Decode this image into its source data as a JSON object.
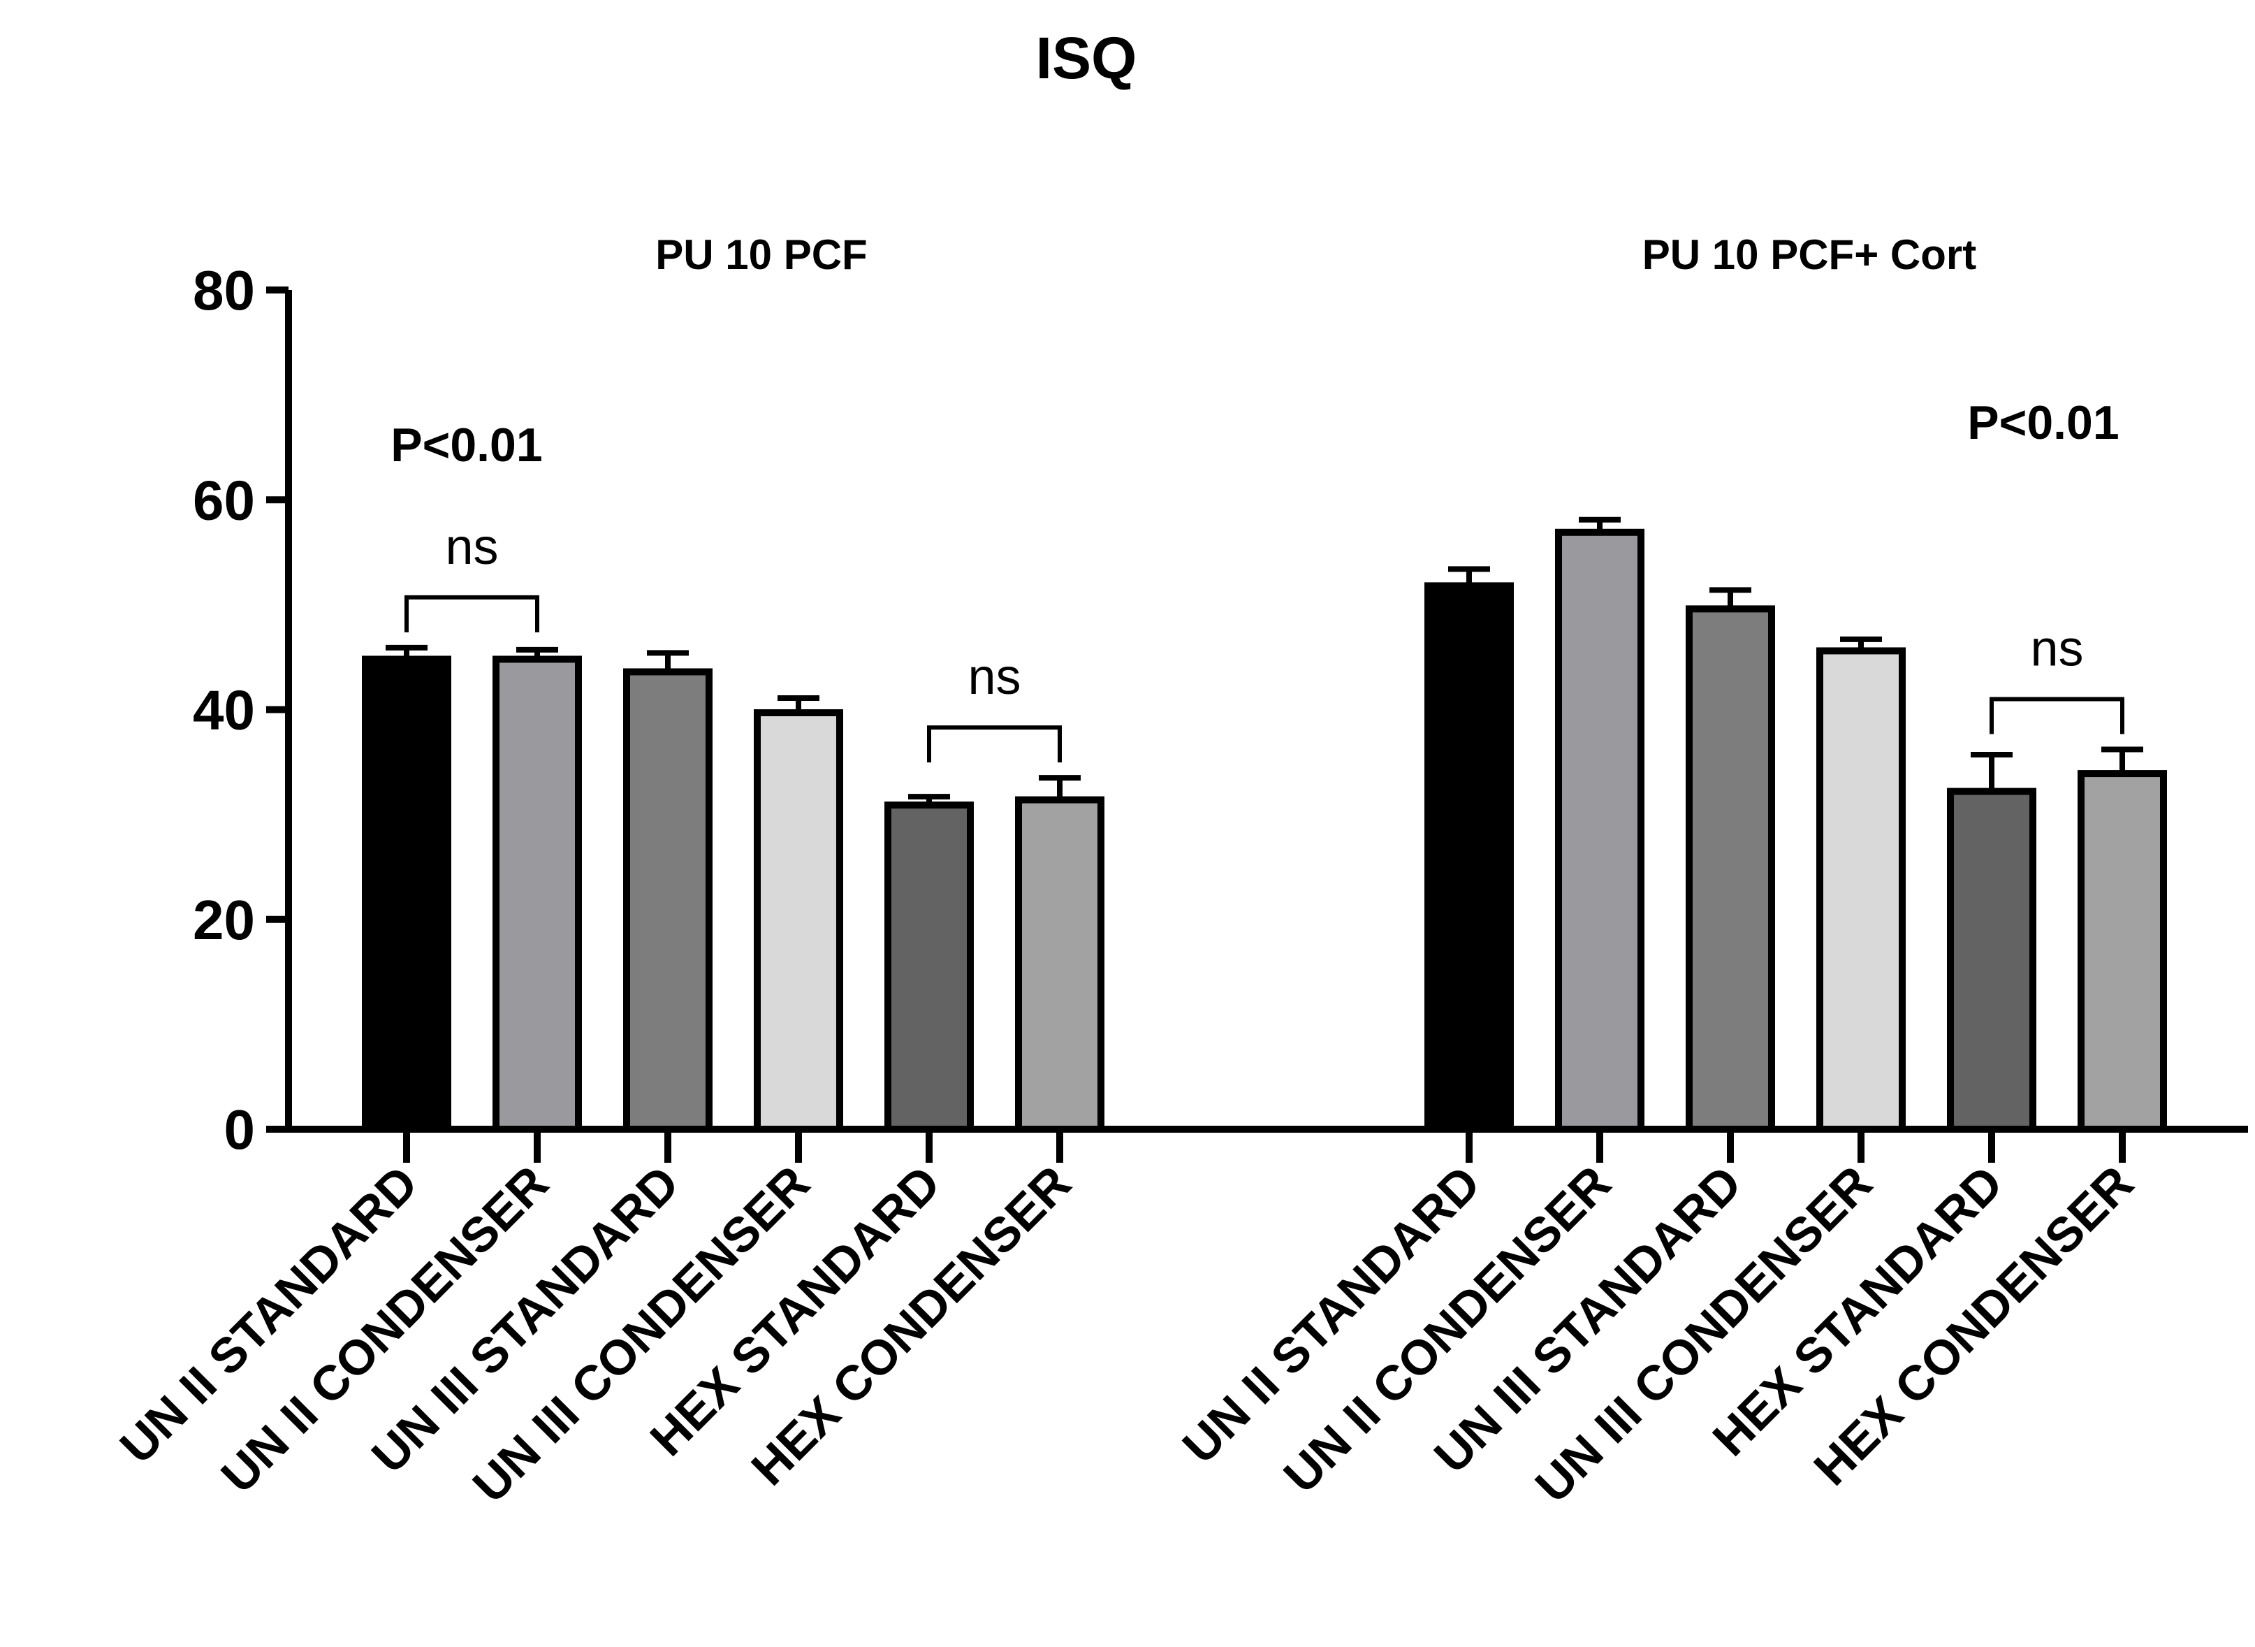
{
  "chart_data": {
    "type": "bar",
    "title": "ISQ",
    "xlabel": "",
    "ylabel": "",
    "ylim": [
      0,
      80
    ],
    "yticks": [
      0,
      20,
      40,
      60,
      80
    ],
    "grid": false,
    "groups": [
      {
        "name": "PU 10 PCF",
        "significance": "P<0.01",
        "bars": [
          {
            "label": "UN II STANDARD",
            "value": 44.8,
            "error": 1.1,
            "color": "#000000"
          },
          {
            "label": "UN II CONDENSER",
            "value": 44.8,
            "error": 0.9,
            "color": "#9a9a9e"
          },
          {
            "label": "UN III STANDARD",
            "value": 43.6,
            "error": 1.8,
            "color": "#7d7d7d"
          },
          {
            "label": "UN III CONDENSER",
            "value": 39.7,
            "error": 1.4,
            "color": "#d9d9d9"
          },
          {
            "label": "HEX STANDARD",
            "value": 30.9,
            "error": 0.8,
            "color": "#636363"
          },
          {
            "label": "HEX CONDENSER",
            "value": 31.4,
            "error": 2.1,
            "color": "#a2a2a2"
          }
        ],
        "brackets": [
          {
            "from": 0,
            "to": 1,
            "label": "ns"
          },
          {
            "from": 4,
            "to": 5,
            "label": "ns"
          }
        ]
      },
      {
        "name": "PU 10 PCF+ Cort",
        "significance": "P<0.01",
        "bars": [
          {
            "label": "UN II STANDARD",
            "value": 51.8,
            "error": 1.6,
            "color": "#000000"
          },
          {
            "label": "UN II CONDENSER",
            "value": 56.9,
            "error": 1.2,
            "color": "#9a9a9e"
          },
          {
            "label": "UN III STANDARD",
            "value": 49.6,
            "error": 1.8,
            "color": "#7d7d7d"
          },
          {
            "label": "UN III CONDENSER",
            "value": 45.6,
            "error": 1.1,
            "color": "#d9d9d9"
          },
          {
            "label": "HEX STANDARD",
            "value": 32.2,
            "error": 3.5,
            "color": "#636363"
          },
          {
            "label": "HEX CONDENSER",
            "value": 33.9,
            "error": 2.3,
            "color": "#a2a2a2"
          }
        ],
        "brackets": [
          {
            "from": 4,
            "to": 5,
            "label": "ns"
          }
        ]
      }
    ]
  }
}
